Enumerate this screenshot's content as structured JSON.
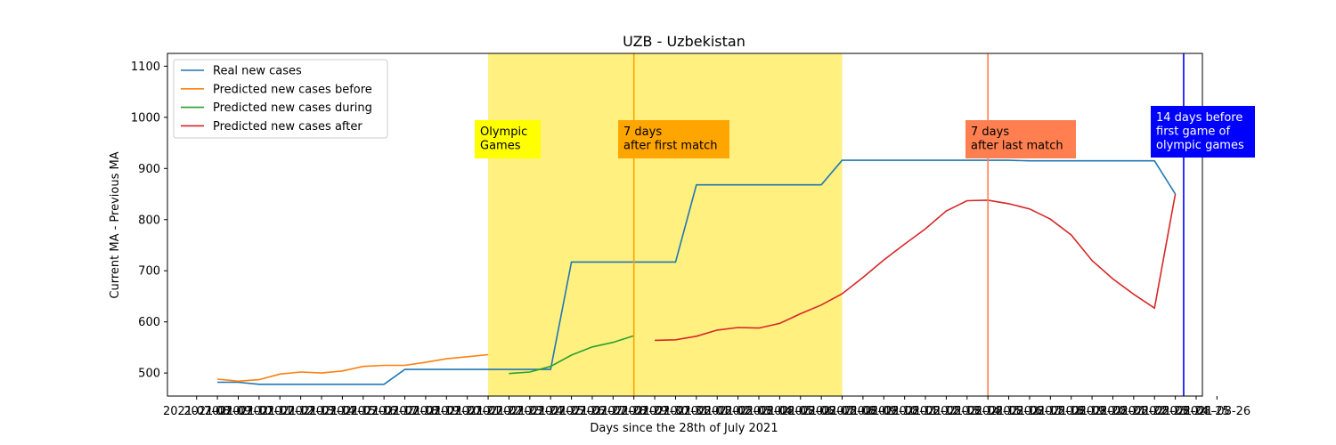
{
  "chart_data": {
    "type": "line",
    "title": "UZB - Uzbekistan",
    "xlabel": "Days since the 28th of July 2021",
    "ylabel": "Current MA - Previous MA",
    "ylim": [
      455,
      1125
    ],
    "yticks": [
      500,
      600,
      700,
      800,
      900,
      1000,
      1100
    ],
    "xlim": [
      -2.4,
      47.3
    ],
    "x_tick_labels": [
      "2021-07-09",
      "2021-07-10",
      "2021-07-11",
      "2021-07-12",
      "2021-07-13",
      "2021-07-14",
      "2021-07-15",
      "2021-07-16",
      "2021-07-17",
      "2021-07-18",
      "2021-07-19",
      "2021-07-20",
      "2021-07-21",
      "2021-07-22",
      "2021-07-23",
      "2021-07-24",
      "2021-07-25",
      "2021-07-26",
      "2021-07-27",
      "2021-07-28",
      "2021-07-29",
      "2021-07-30",
      "2021-07-31",
      "2021-08-01",
      "2021-08-02",
      "2021-08-03",
      "2021-08-04",
      "2021-08-05",
      "2021-08-06",
      "2021-08-07",
      "2021-08-08",
      "2021-08-09",
      "2021-08-10",
      "2021-08-11",
      "2021-08-12",
      "2021-08-13",
      "2021-08-14",
      "2021-08-15",
      "2021-08-16",
      "2021-08-17",
      "2021-08-18",
      "2021-08-19",
      "2021-08-20",
      "2021-08-21",
      "2021-08-22",
      "2021-08-23",
      "2021-08-24",
      "2021-08-25",
      "2021-08-26",
      "2021-07-08"
    ],
    "x_tick_positions": [
      0,
      1,
      2,
      3,
      4,
      5,
      6,
      7,
      8,
      9,
      10,
      11,
      12,
      13,
      14,
      15,
      16,
      17,
      18,
      19,
      20,
      21,
      22,
      23,
      24,
      25,
      26,
      27,
      28,
      29,
      30,
      31,
      32,
      33,
      34,
      35,
      36,
      37,
      38,
      39,
      40,
      41,
      42,
      43,
      44,
      45,
      46,
      47,
      48,
      -1
    ],
    "grid": false,
    "legend_position": "top-left",
    "series": [
      {
        "name": "Real new cases",
        "color": "#1f77b4",
        "x": [
          0,
          1,
          2,
          3,
          4,
          5,
          6,
          7,
          8,
          9,
          10,
          11,
          12,
          13,
          14,
          15,
          16,
          17,
          18,
          19,
          20,
          21,
          22,
          23,
          24,
          25,
          26,
          27,
          28,
          29,
          30,
          31,
          32,
          33,
          34,
          35,
          36,
          37,
          38,
          39,
          40,
          41,
          42,
          43,
          44,
          45,
          46
        ],
        "y": [
          482,
          482,
          478,
          478,
          478,
          478,
          478,
          478,
          478,
          507,
          507,
          507,
          507,
          507,
          507,
          507,
          507,
          717,
          717,
          717,
          717,
          717,
          717,
          868,
          868,
          868,
          868,
          868,
          868,
          868,
          916,
          916,
          916,
          916,
          916,
          916,
          916,
          916,
          916,
          915,
          915,
          915,
          915,
          915,
          915,
          915,
          850
        ]
      },
      {
        "name": "Predicted new cases before",
        "color": "#ff7f0e",
        "x": [
          0,
          1,
          2,
          3,
          4,
          5,
          6,
          7,
          8,
          9,
          10,
          11,
          12,
          13
        ],
        "y": [
          488,
          484,
          487,
          498,
          502,
          500,
          504,
          513,
          515,
          515,
          521,
          528,
          532,
          536
        ]
      },
      {
        "name": "Predicted new cases during",
        "color": "#2ca02c",
        "x": [
          14,
          15,
          16,
          17,
          18,
          19,
          20
        ],
        "y": [
          499,
          502,
          513,
          535,
          551,
          560,
          573
        ]
      },
      {
        "name": "Predicted new cases after",
        "color": "#d62728",
        "x": [
          21,
          22,
          23,
          24,
          25,
          26,
          27,
          28,
          29,
          30,
          31,
          32,
          33,
          34,
          35,
          36,
          37,
          38,
          39,
          40,
          41,
          42,
          43,
          44,
          45,
          46
        ],
        "y": [
          564,
          565,
          572,
          584,
          589,
          588,
          597,
          616,
          633,
          655,
          687,
          721,
          752,
          782,
          817,
          837,
          838,
          831,
          821,
          801,
          770,
          720,
          684,
          654,
          627,
          850
        ]
      }
    ],
    "annotations": [
      {
        "label": "Olympic\nGames",
        "box_color": "#ffff00",
        "text_color": "#000000"
      },
      {
        "label": "7 days\nafter first match",
        "box_color": "#ffa500",
        "text_color": "#000000"
      },
      {
        "label": "7 days\nafter last match",
        "box_color": "#ff7f50",
        "text_color": "#000000"
      },
      {
        "label": "14 days before\nfirst game of\nolympic games",
        "box_color": "#0000ff",
        "text_color": "#ffffff"
      }
    ],
    "shaded_region": {
      "x_start": 13,
      "x_end": 30,
      "color": "#fff080"
    },
    "vlines": [
      {
        "x": 20,
        "color": "#ffa500"
      },
      {
        "x": 37,
        "color": "#ff7f50"
      },
      {
        "x": 46.4,
        "color": "#0000ff"
      }
    ]
  }
}
